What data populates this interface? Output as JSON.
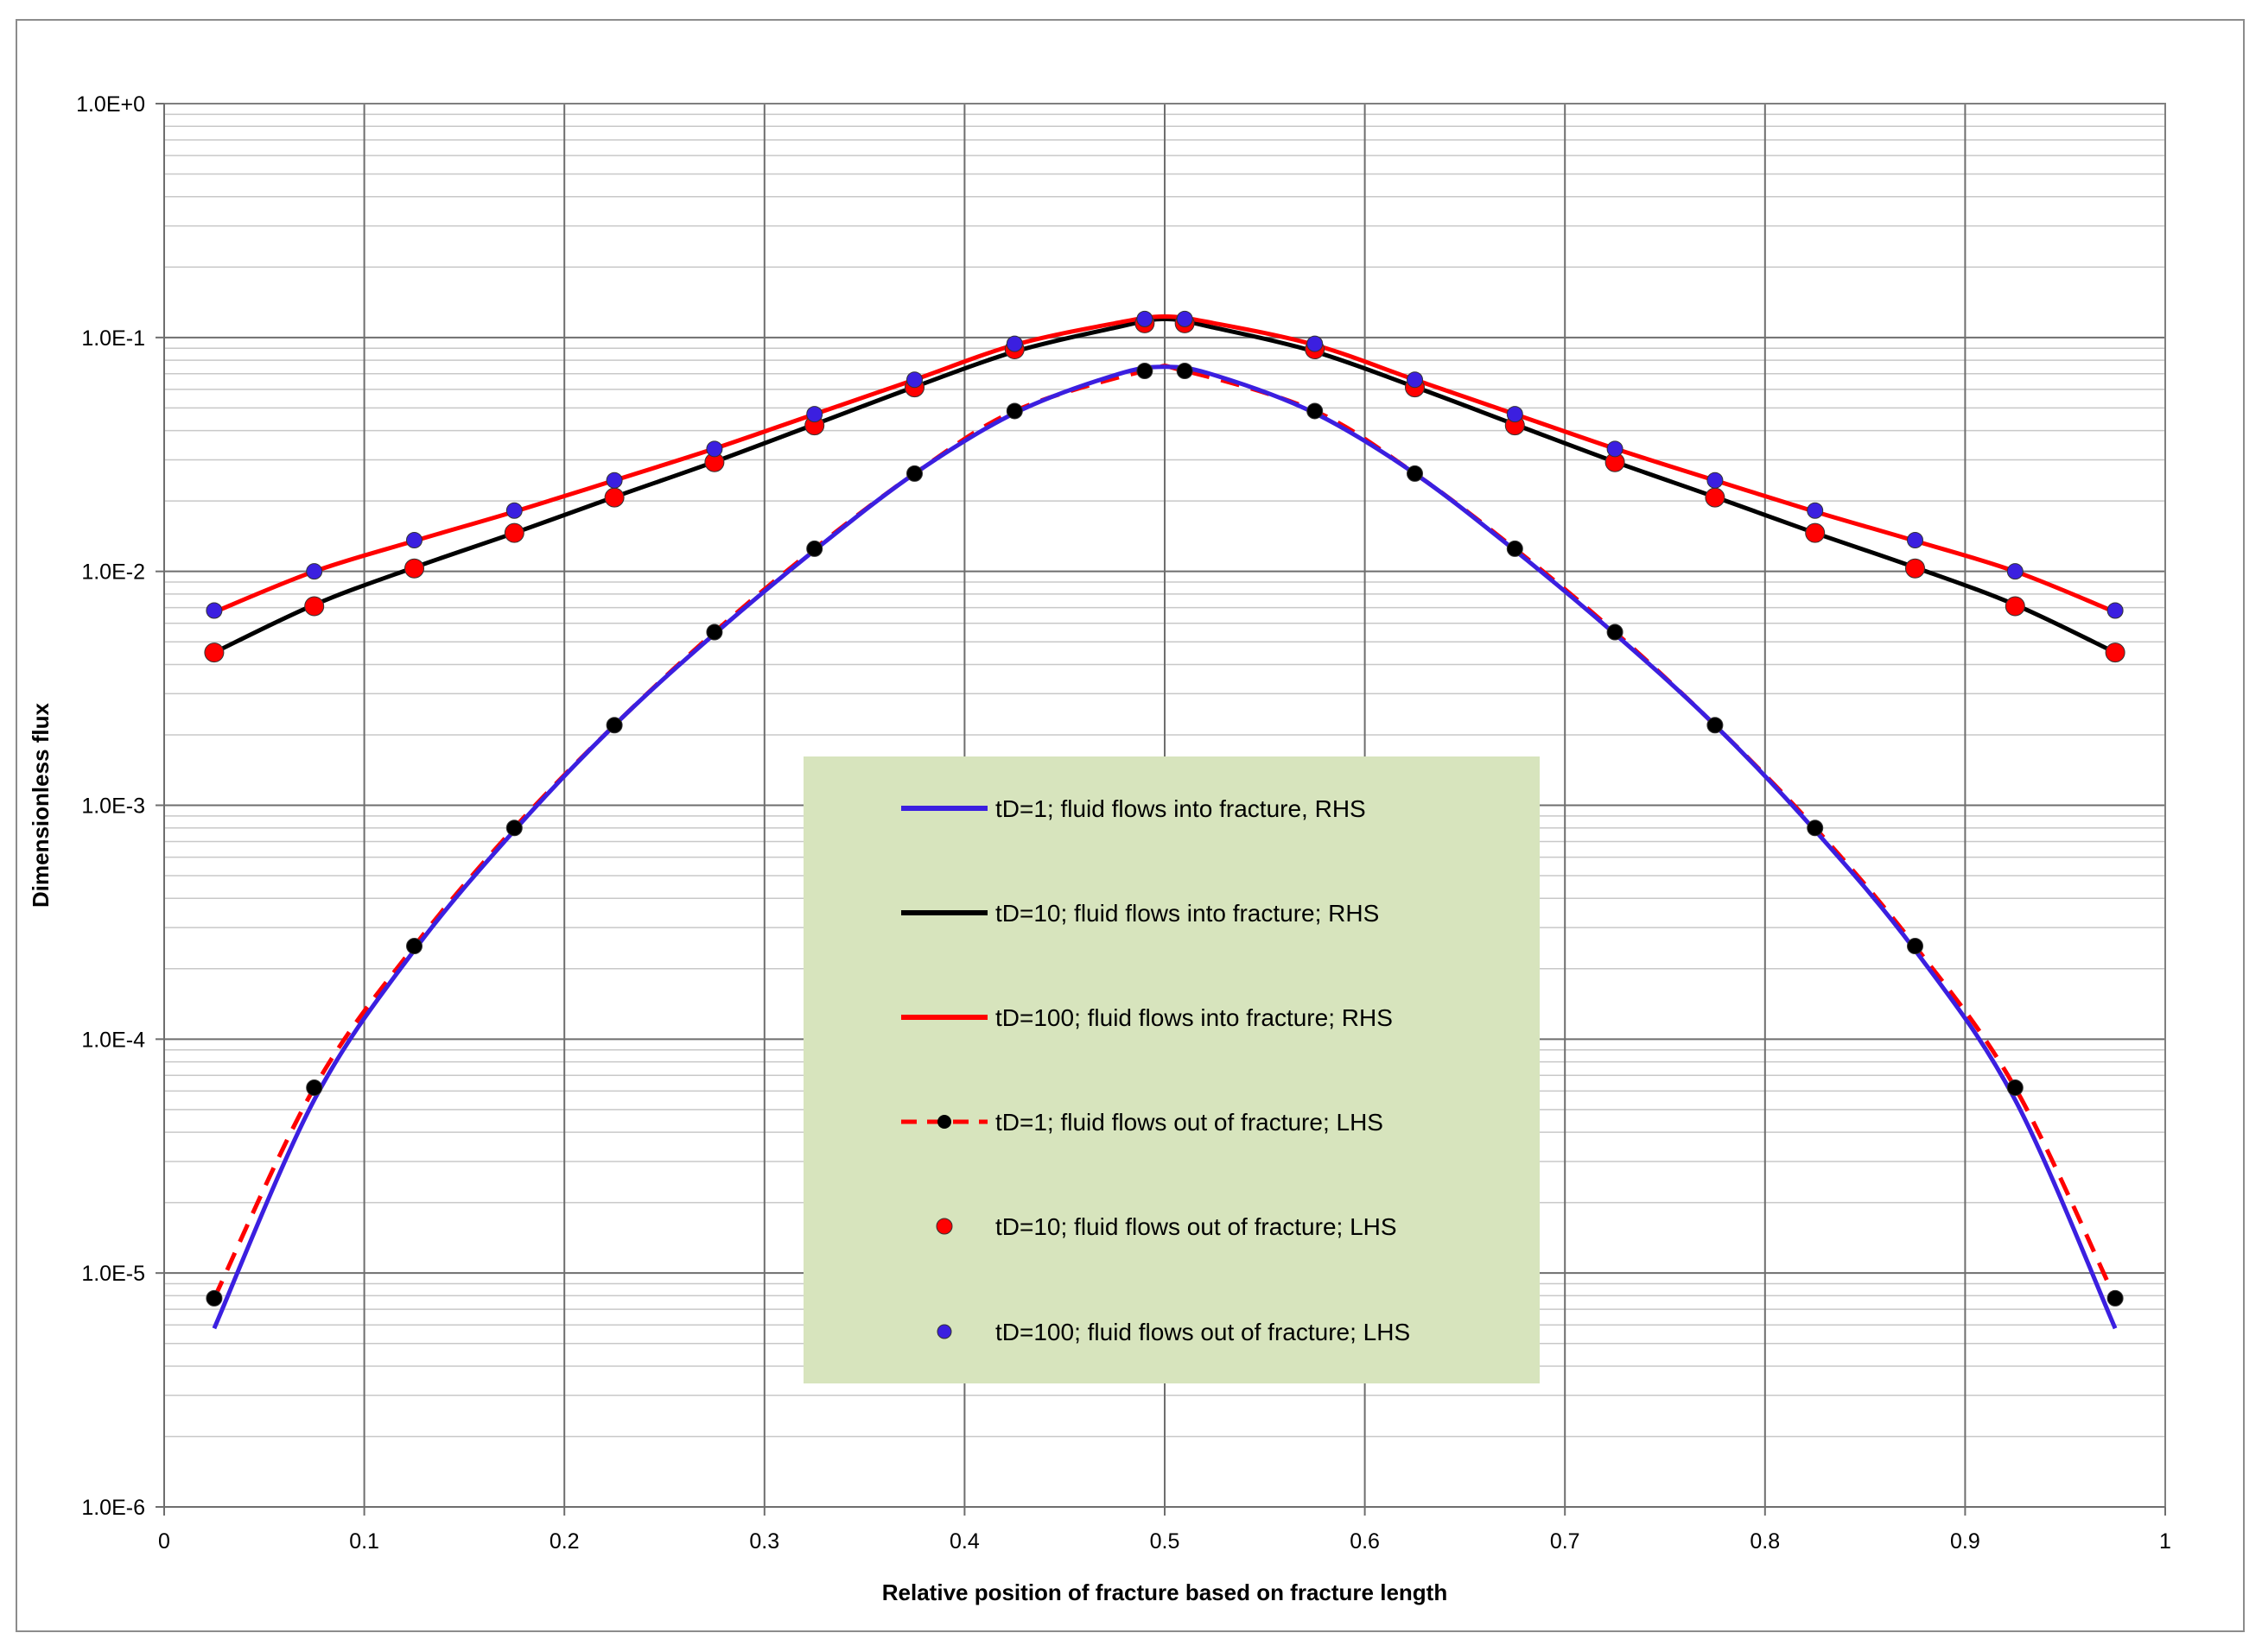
{
  "chart_data": {
    "type": "line",
    "title": "",
    "xlabel": "Relative position of fracture based on fracture length",
    "ylabel": "Dimensionless flux",
    "xlim": [
      0,
      1
    ],
    "ylim": [
      1e-06,
      1
    ],
    "y_scale": "log",
    "grid": "on",
    "x_ticks": [
      "0",
      "0.1",
      "0.2",
      "0.3",
      "0.4",
      "0.5",
      "0.6",
      "0.7",
      "0.8",
      "0.9",
      "1"
    ],
    "y_ticks": [
      "1.0E+0",
      "1.0E-1",
      "1.0E-2",
      "1.0E-3",
      "1.0E-4",
      "1.0E-5",
      "1.0E-6"
    ],
    "legend_position": "center",
    "legend_background": "#d7e4bd",
    "series": [
      {
        "name": "tD=1; fluid flows into fracture, RHS",
        "style": "line",
        "color": "#3b1fe0",
        "x": [
          0.025,
          0.075,
          0.125,
          0.175,
          0.225,
          0.275,
          0.325,
          0.375,
          0.425,
          0.475,
          0.5,
          0.525,
          0.575,
          0.625,
          0.675,
          0.725,
          0.775,
          0.825,
          0.875,
          0.925,
          0.975
        ],
        "y": [
          5.8e-06,
          5.5e-05,
          0.00024,
          0.00078,
          0.0022,
          0.0054,
          0.0123,
          0.0262,
          0.0475,
          0.069,
          0.075,
          0.069,
          0.0475,
          0.0262,
          0.0123,
          0.0054,
          0.0022,
          0.00078,
          0.00024,
          5.5e-05,
          5.8e-06
        ]
      },
      {
        "name": "tD=10; fluid flows into fracture; RHS",
        "style": "line",
        "color": "#000000",
        "x": [
          0.025,
          0.075,
          0.125,
          0.175,
          0.225,
          0.275,
          0.325,
          0.375,
          0.425,
          0.475,
          0.5,
          0.525,
          0.575,
          0.625,
          0.675,
          0.725,
          0.775,
          0.825,
          0.875,
          0.925,
          0.975
        ],
        "y": [
          0.0045,
          0.0072,
          0.0104,
          0.0146,
          0.0208,
          0.0294,
          0.0425,
          0.0615,
          0.087,
          0.11,
          0.12,
          0.11,
          0.087,
          0.0615,
          0.0425,
          0.0294,
          0.0208,
          0.0146,
          0.0104,
          0.0072,
          0.0045
        ]
      },
      {
        "name": "tD=100; fluid flows into fracture; RHS",
        "style": "line",
        "color": "#ff0000",
        "x": [
          0.025,
          0.075,
          0.125,
          0.175,
          0.225,
          0.275,
          0.325,
          0.375,
          0.425,
          0.475,
          0.5,
          0.525,
          0.575,
          0.625,
          0.675,
          0.725,
          0.775,
          0.825,
          0.875,
          0.925,
          0.975
        ],
        "y": [
          0.0067,
          0.01,
          0.0135,
          0.018,
          0.0245,
          0.0335,
          0.047,
          0.066,
          0.093,
          0.115,
          0.123,
          0.115,
          0.093,
          0.066,
          0.047,
          0.0335,
          0.0245,
          0.018,
          0.0135,
          0.01,
          0.0067
        ]
      },
      {
        "name": "tD=1; fluid flows out of fracture; LHS",
        "style": "dashed-line-with-markers",
        "color": "#ff0000",
        "marker_color": "#000000",
        "x": [
          0.025,
          0.075,
          0.125,
          0.175,
          0.225,
          0.275,
          0.325,
          0.375,
          0.425,
          0.49,
          0.51,
          0.575,
          0.625,
          0.675,
          0.725,
          0.775,
          0.825,
          0.875,
          0.925,
          0.975
        ],
        "y": [
          7.8e-06,
          6.2e-05,
          0.00025,
          0.0008,
          0.0022,
          0.0055,
          0.0125,
          0.0262,
          0.0485,
          0.072,
          0.072,
          0.0485,
          0.0262,
          0.0125,
          0.0055,
          0.0022,
          0.0008,
          0.00025,
          6.2e-05,
          7.8e-06
        ]
      },
      {
        "name": "tD=10; fluid flows out of fracture; LHS",
        "style": "markers",
        "color": "#ff0000",
        "x": [
          0.025,
          0.075,
          0.125,
          0.175,
          0.225,
          0.275,
          0.325,
          0.375,
          0.425,
          0.49,
          0.51,
          0.575,
          0.625,
          0.675,
          0.725,
          0.775,
          0.825,
          0.875,
          0.925,
          0.975
        ],
        "y": [
          0.0045,
          0.0071,
          0.0103,
          0.0146,
          0.0207,
          0.0293,
          0.0421,
          0.0612,
          0.089,
          0.115,
          0.115,
          0.089,
          0.0612,
          0.0421,
          0.0293,
          0.0207,
          0.0146,
          0.0103,
          0.0071,
          0.0045
        ]
      },
      {
        "name": "tD=100; fluid flows out of fracture; LHS",
        "style": "markers",
        "color": "#3b1fe0",
        "x": [
          0.025,
          0.075,
          0.125,
          0.175,
          0.225,
          0.275,
          0.325,
          0.375,
          0.425,
          0.49,
          0.51,
          0.575,
          0.625,
          0.675,
          0.725,
          0.775,
          0.825,
          0.875,
          0.925,
          0.975
        ],
        "y": [
          0.0068,
          0.01,
          0.0136,
          0.0182,
          0.0245,
          0.0334,
          0.047,
          0.066,
          0.094,
          0.12,
          0.12,
          0.094,
          0.066,
          0.047,
          0.0334,
          0.0245,
          0.0182,
          0.0136,
          0.01,
          0.0068
        ]
      }
    ]
  }
}
